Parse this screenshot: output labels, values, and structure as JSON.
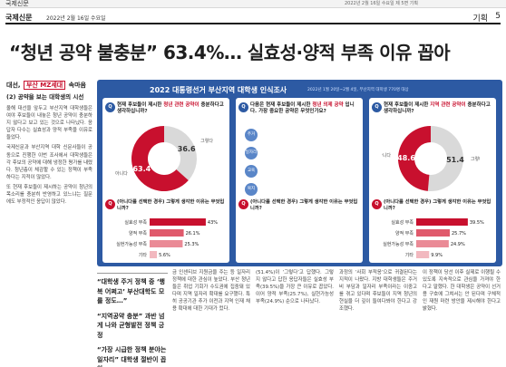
{
  "top_strip": {
    "brand": "국제신문",
    "meta": "2022년 2월 16일 수요일 제 5면 기획"
  },
  "masthead": {
    "logo": "국제신문",
    "date": "2022년 2월 16일 수요일",
    "section": "기획",
    "page": "5"
  },
  "headline": "“청년 공약 불충분” 63.4%… 실효성·양적 부족 이유 꼽아",
  "left_column": {
    "series_prefix": "대선,",
    "series_highlight": "부산 MZ세대",
    "series_suffix": "속마음",
    "sub_tag": "(2) 공약을 보는 대학생의 시선",
    "paragraphs": [
      "올해 대선을 앞두고 부산지역 대학생들은 여야 후보들이 내놓은 청년 공약이 충분하지 않다고 보고 있는 것으로 나타났다. 응답자 다수는 실효성과 양적 부족을 이유로 들었다.",
      "국제신문과 부산지역 대학 신문사들이 공동으로 진행한 이번 조사에서 대학생들은 각 후보의 공약에 대해 냉정한 평가를 내렸다. 청년층이 체감할 수 있는 정책이 부족하다는 지적이 많았다.",
      "또 현재 후보들이 제시하는 공약이 청년의 목소리를 충분히 반영하고 있느냐는 질문에도 부정적인 응답이 많았다."
    ]
  },
  "infographic": {
    "title": "2022 대통령선거 부산지역 대학생 인식조사",
    "subtitle": "2022년 1월 20일~2월 4일, 부산지역 대학생 770명 대상",
    "panels": [
      {
        "q": "Q",
        "question_pre": "현재 후보들이 제시한",
        "question_hl": "청년 관련 공약이",
        "question_post": "충분하다고 생각하십니까?",
        "q2": "Q",
        "question2": "(아니다를 선택한 경우) 그렇게 생각한 이유는 무엇입니까?"
      },
      {
        "q": "Q",
        "question_pre": "다음은 현재 후보들이 제시한",
        "question_hl": "청년 의제 공약",
        "question_post": "입니다. 가장 중요한 공약은 무엇인가요?",
        "q2": "Q",
        "question2": "(아니다를 선택한 경우) 그렇게 생각한 이유는 무엇입니까?"
      },
      {
        "q": "Q",
        "question_pre": "현재 후보들이 제시한",
        "question_hl": "지역 관련 공약이",
        "question_post": "충분하다고 생각하십니까?",
        "q2": "Q",
        "question2": "(아니다를 선택한 경우) 그렇게 생각한 이유는 무엇입니까?"
      }
    ],
    "axis_chips": [
      "주거",
      "일자리",
      "교육",
      "복지"
    ]
  },
  "chart_data": [
    {
      "type": "pie",
      "title": "청년 관련 공약 충분 여부",
      "labels": [
        "그렇다",
        "아니다"
      ],
      "values": [
        36.6,
        63.4
      ],
      "colors": [
        "#d9d9d9",
        "#c8102e"
      ]
    },
    {
      "type": "bar",
      "title": "청년 공약 불충분 이유",
      "categories": [
        "실효성 부족",
        "양적 부족",
        "실현가능성 부족",
        "기타"
      ],
      "values": [
        43.0,
        26.1,
        25.3,
        5.6
      ],
      "colors": [
        "#c8102e",
        "#e05a6c",
        "#ea8a96",
        "#f2b8bf"
      ]
    },
    {
      "type": "pie",
      "title": "지역 관련 공약 충분 여부",
      "labels": [
        "그렇다",
        "아니다"
      ],
      "values": [
        51.4,
        48.6
      ],
      "colors": [
        "#d9d9d9",
        "#c8102e"
      ]
    },
    {
      "type": "bar",
      "title": "지역 공약 불충분 이유",
      "categories": [
        "실효성 부족",
        "양적 부족",
        "실현가능성 부족",
        "기타"
      ],
      "values": [
        39.5,
        25.7,
        24.9,
        9.9
      ],
      "colors": [
        "#c8102e",
        "#e05a6c",
        "#ea8a96",
        "#f2b8bf"
      ]
    }
  ],
  "pull_quote": [
    "“대학생 주거 정책 중 ‘행복 어쩌고’ 부산대학도 모를 정도…”",
    "“지역공약 충분” 과반 넘게 나와 균형발전 정책 긍정",
    "“가장 시급한 정책 분야는 일자리” 대학생 절반이 꼽아"
  ],
  "columns": [
    "금 인센티브 지원금을 주는 등 일자리 정책에 대한 관심이 높았다. 부산 청년들은 취업 기회가 수도권에 집중돼 있다며 지역 일자리 확대를 요구했다. 특히 공공기관 추가 이전과 지역 인재 채용 확대에 대한 기대가 컸다.",
    "(51.4%)이 ‘그렇다’고 답했다. 그렇지 않다고 답한 응답자들은 실효성 부족(39.5%)을 가장 큰 이유로 꼽았다. 이어 양적 부족(25.7%), 실현가능성 부족(24.9%) 순으로 나타났다.",
    "과정의 ‘사회 부적응’으로 귀결된다는 지적이 나왔다. 지방 대학생들은 주거비 부담과 일자리 부족이라는 이중고를 겪고 있다며 후보들이 지역 청년의 현실을 더 깊이 들여다봐야 한다고 강조했다.",
    "이 정책이 당선 이후 실제로 이행될 수 있도록 지속적으로 관심을 가져야 한다고 말했다. 한 대학생은 공약이 선거용 구호에 그쳐서는 안 된다며 구체적인 재원 마련 방안을 제시해야 한다고 밝혔다."
  ]
}
